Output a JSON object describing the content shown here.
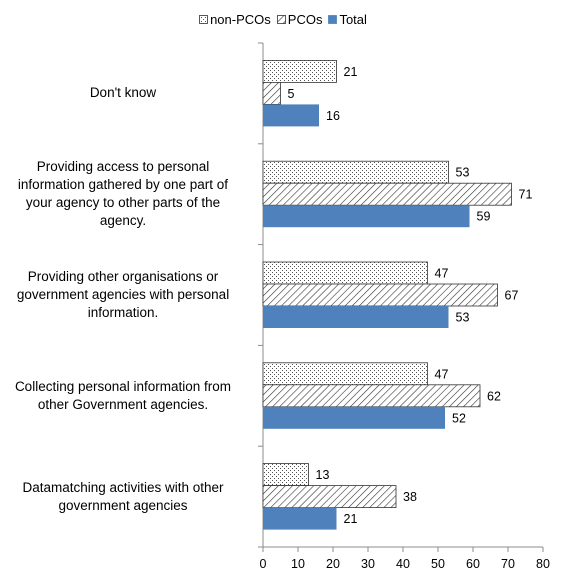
{
  "chart_data": {
    "type": "bar",
    "orientation": "horizontal",
    "categories": [
      "Don't know",
      "Providing access to personal information gathered by one part of your agency to other parts of the agency.",
      "Providing other organisations or government agencies with personal information.",
      "Collecting personal information from other Government agencies.",
      "Datamatching activities with other government agencies"
    ],
    "category_lines": [
      [
        "Don't know"
      ],
      [
        "Providing access to personal",
        "information gathered by one part of",
        "your agency to other parts of the",
        "agency."
      ],
      [
        "Providing other organisations or",
        "government agencies with personal",
        "information."
      ],
      [
        "Collecting personal information from",
        "other Government agencies."
      ],
      [
        "Datamatching activities with other",
        "government agencies"
      ]
    ],
    "series": [
      {
        "name": "non-PCOs",
        "values": [
          21,
          53,
          47,
          47,
          13
        ],
        "pattern": "dots",
        "color": "#000000"
      },
      {
        "name": "PCOs",
        "values": [
          5,
          71,
          67,
          62,
          38
        ],
        "pattern": "diagonal",
        "color": "#000000"
      },
      {
        "name": "Total",
        "values": [
          16,
          59,
          53,
          52,
          21
        ],
        "pattern": "solid",
        "color": "#4f81bd"
      }
    ],
    "xlim": [
      0,
      80
    ],
    "xticks": [
      "0",
      "10",
      "20",
      "30",
      "40",
      "50",
      "60",
      "70",
      "80"
    ],
    "legend_position": "top",
    "grid": false
  }
}
